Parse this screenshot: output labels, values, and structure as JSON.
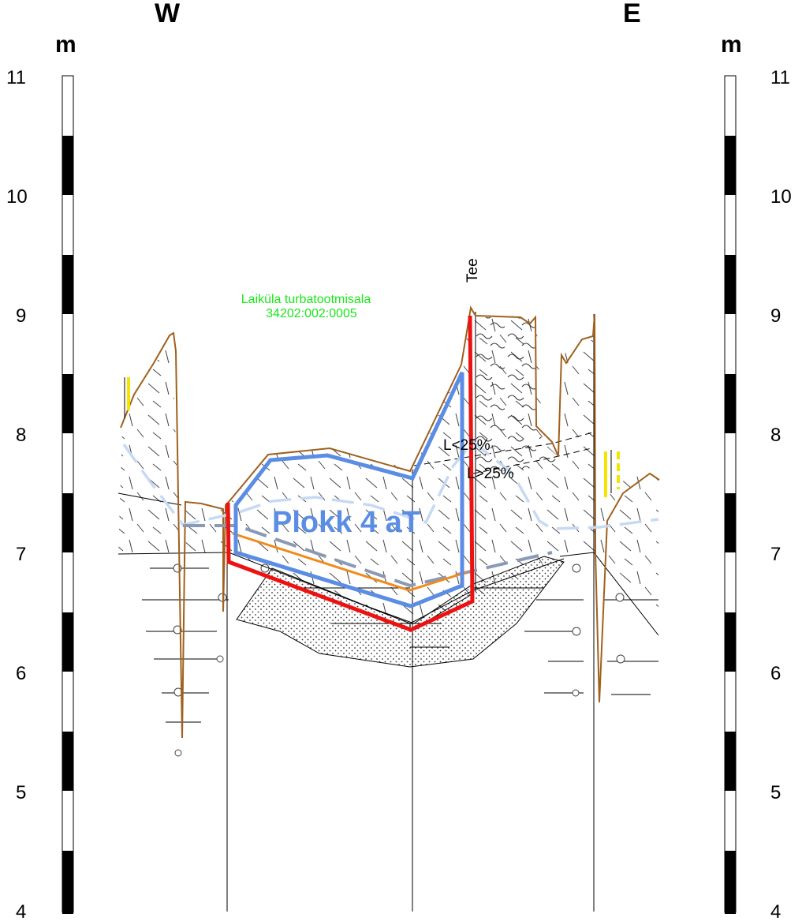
{
  "directions": {
    "left": "W",
    "right": "E"
  },
  "axis": {
    "unit": "m",
    "ticks": [
      "11",
      "10",
      "9",
      "8",
      "7",
      "6",
      "5",
      "4"
    ],
    "min": 4,
    "max": 11
  },
  "annotations": {
    "road": "Tee",
    "parcel_name": "Laiküla turbatootmisala",
    "parcel_id": "34202:002:0005",
    "clay_low": "L<25%",
    "clay_high": "L>25%",
    "block_label": "Plokk 4 aT"
  },
  "colors": {
    "terrain": "#a0601e",
    "block_outline": "#5a8de3",
    "red_line": "#ee1111",
    "orange_line": "#f08a1c",
    "dash_light": "#c7d9f3",
    "dash_dark": "#8a9ab5",
    "yellow": "#f2e600",
    "green_text": "#19e619"
  }
}
